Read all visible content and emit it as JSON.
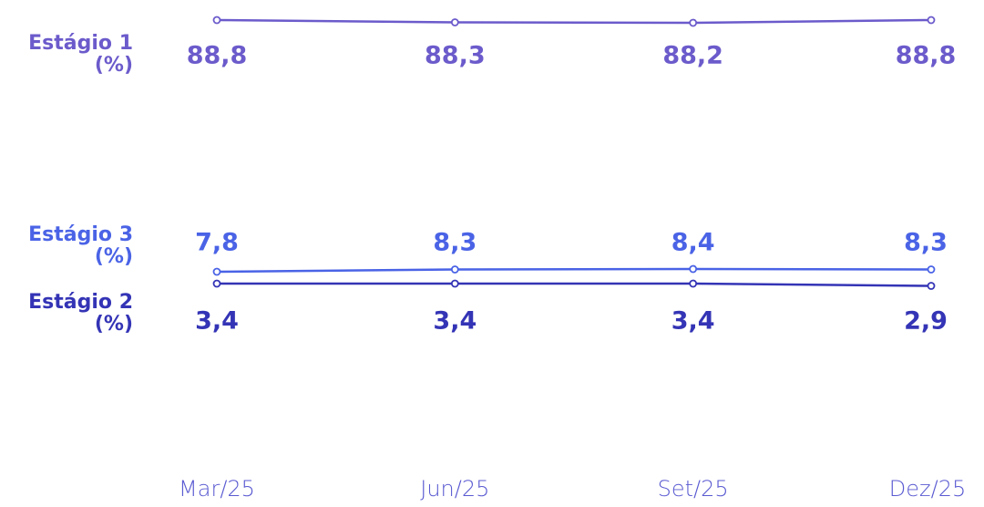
{
  "chart_data": {
    "type": "line",
    "categories": [
      "Mar/25",
      "Jun/25",
      "Set/25",
      "Dez/25"
    ],
    "series": [
      {
        "name": "Estágio 1 (%)",
        "color": "#6b5bcb",
        "values": [
          88.8,
          88.3,
          88.2,
          88.8
        ],
        "value_labels": [
          "88,8",
          "88,3",
          "88,2",
          "88,8"
        ]
      },
      {
        "name": "Estágio 3 (%)",
        "color": "#4a63e6",
        "values": [
          7.8,
          8.3,
          8.4,
          8.3
        ],
        "value_labels": [
          "7,8",
          "8,3",
          "8,4",
          "8,3"
        ]
      },
      {
        "name": "Estágio 2 (%)",
        "color": "#3434b6",
        "values": [
          3.4,
          3.4,
          3.4,
          2.9
        ],
        "value_labels": [
          "3,4",
          "3,4",
          "3,4",
          "2,9"
        ]
      }
    ]
  }
}
